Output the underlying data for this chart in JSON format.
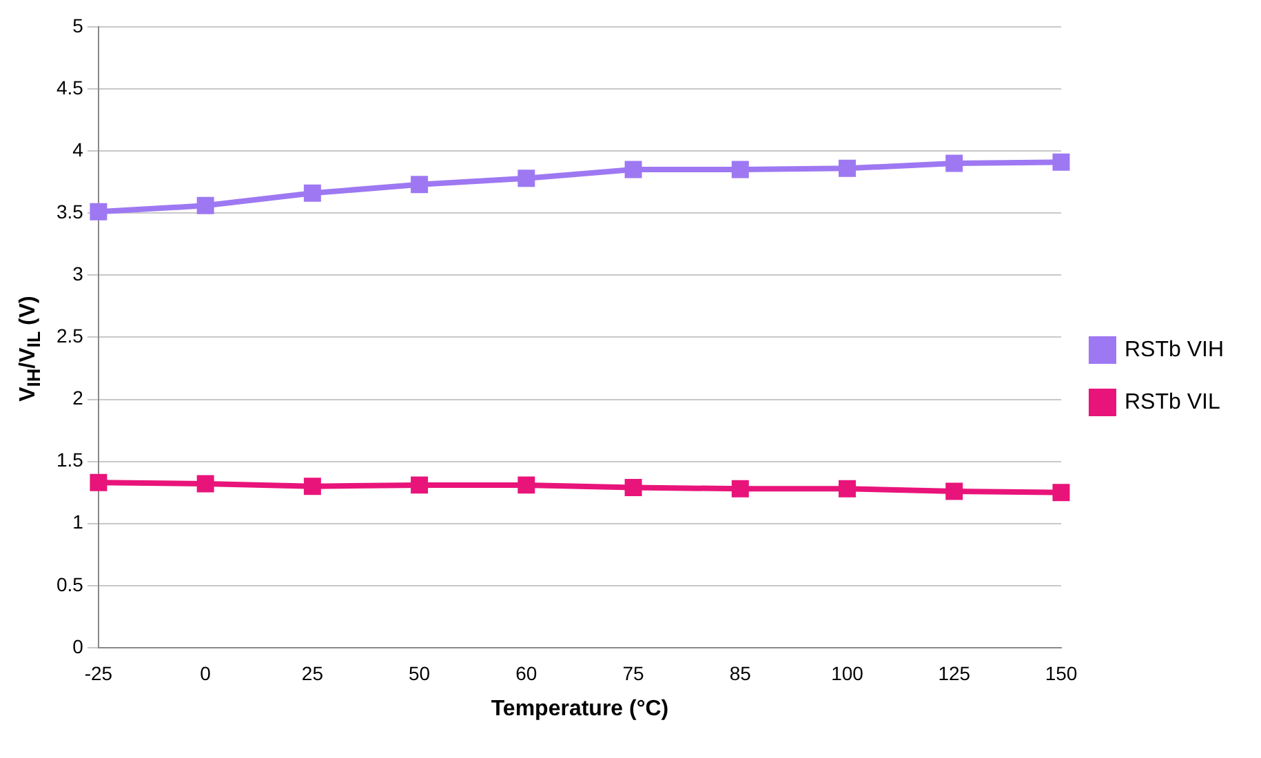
{
  "chart_data": {
    "type": "line",
    "xlabel": "Temperature (°C)",
    "ylabel": "V$_{IH}$/V$_{IL}$ (V)",
    "categories": [
      "-25",
      "0",
      "25",
      "50",
      "60",
      "75",
      "85",
      "100",
      "125",
      "150"
    ],
    "series": [
      {
        "name": "RSTb VIH",
        "color": "#9e78f2",
        "values": [
          3.51,
          3.56,
          3.66,
          3.73,
          3.78,
          3.85,
          3.85,
          3.86,
          3.9,
          3.91
        ]
      },
      {
        "name": "RSTb VIL",
        "color": "#e8147a",
        "values": [
          1.33,
          1.32,
          1.3,
          1.31,
          1.31,
          1.29,
          1.28,
          1.28,
          1.26,
          1.25
        ]
      }
    ],
    "ylim": [
      0,
      5
    ],
    "yticks": [
      0,
      0.5,
      1,
      1.5,
      2,
      2.5,
      3,
      3.5,
      4,
      4.5,
      5
    ],
    "grid": "y",
    "legend": "right",
    "marker": "square",
    "line_style": "solid"
  }
}
